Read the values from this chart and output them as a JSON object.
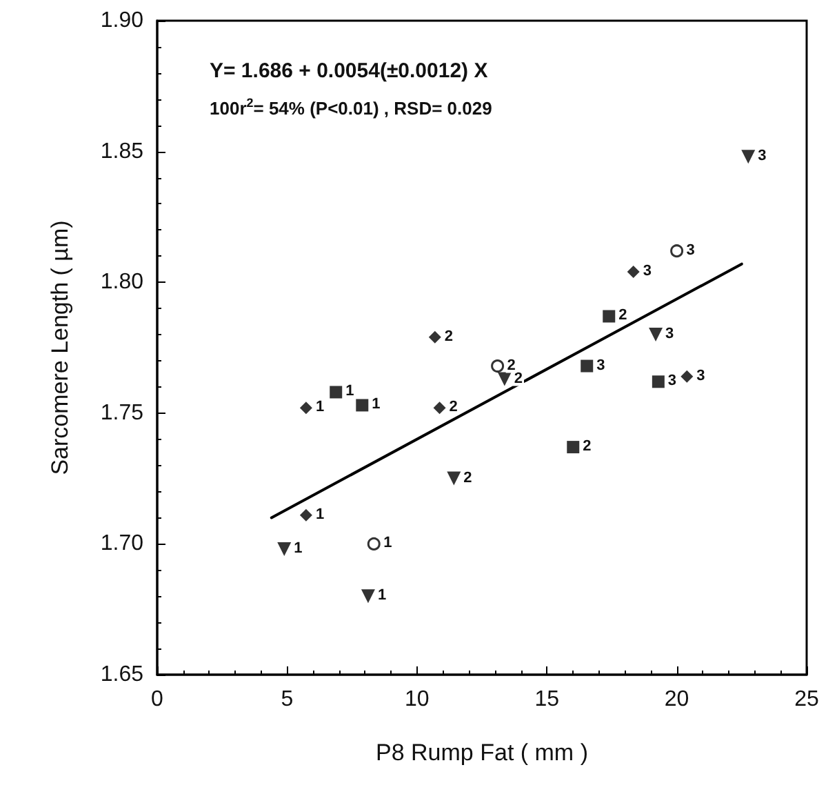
{
  "chart_data": {
    "type": "scatter",
    "xlabel": "P8 Rump Fat ( mm )",
    "ylabel": "Sarcomere Length ( µm)",
    "annotations": [
      "Y= 1.686 + 0.0054(±0.0012) X",
      "100r$^{2}$= 54% (P<0.01) , RSD= 0.029",
      {
        "text": "1",
        "x": 5.73,
        "y": 1.752
      },
      {
        "text": "1",
        "x": 5.73,
        "y": 1.711
      },
      {
        "text": "2",
        "x": 10.69,
        "y": 1.779
      },
      {
        "text": "2",
        "x": 10.87,
        "y": 1.752
      },
      {
        "text": "3",
        "x": 18.33,
        "y": 1.804
      },
      {
        "text": "3",
        "x": 20.39,
        "y": 1.764
      },
      {
        "text": "1",
        "x": 6.88,
        "y": 1.758
      },
      {
        "text": "1",
        "x": 7.89,
        "y": 1.753
      },
      {
        "text": "2",
        "x": 17.39,
        "y": 1.787
      },
      {
        "text": "2",
        "x": 16.01,
        "y": 1.737
      },
      {
        "text": "3",
        "x": 16.54,
        "y": 1.768
      },
      {
        "text": "3",
        "x": 19.29,
        "y": 1.762
      },
      {
        "text": "1",
        "x": 4.89,
        "y": 1.698
      },
      {
        "text": "1",
        "x": 8.12,
        "y": 1.68
      },
      {
        "text": "2",
        "x": 11.42,
        "y": 1.725
      },
      {
        "text": "2",
        "x": 13.37,
        "y": 1.763
      },
      {
        "text": "3",
        "x": 19.19,
        "y": 1.78
      },
      {
        "text": "3",
        "x": 22.75,
        "y": 1.848
      },
      {
        "text": "1",
        "x": 8.34,
        "y": 1.7
      },
      {
        "text": "2",
        "x": 13.1,
        "y": 1.768
      },
      {
        "text": "3",
        "x": 20.0,
        "y": 1.812
      }
    ],
    "xlim": [
      0,
      25
    ],
    "xticks": [
      0,
      5,
      10,
      15,
      20,
      25
    ],
    "ylim": [
      1.65,
      1.9
    ],
    "yticks": [
      {
        "value": 1.65,
        "label": "1.65"
      },
      {
        "value": 1.7,
        "label": "1.70"
      },
      {
        "value": 1.75,
        "label": "1.75"
      },
      {
        "value": 1.8,
        "label": "1.80"
      },
      {
        "value": 1.85,
        "label": "1.85"
      },
      {
        "value": 1.9,
        "label": "1.90"
      }
    ],
    "grid": false,
    "series": [
      {
        "marker": "diamond",
        "color": "#000000",
        "x": [
          5.73,
          5.73,
          10.69,
          10.87,
          18.33,
          20.39
        ],
        "values": [
          1.752,
          1.711,
          1.779,
          1.752,
          1.804,
          1.764
        ]
      },
      {
        "marker": "square",
        "color": "#000000",
        "x": [
          6.88,
          7.89,
          17.39,
          16.01,
          16.54,
          19.29
        ],
        "values": [
          1.758,
          1.753,
          1.787,
          1.737,
          1.768,
          1.762
        ]
      },
      {
        "marker": "triangle",
        "color": "#000000",
        "x": [
          4.89,
          8.12,
          11.42,
          13.37,
          19.19,
          22.75
        ],
        "values": [
          1.698,
          1.68,
          1.725,
          1.763,
          1.78,
          1.848
        ]
      },
      {
        "marker": "circle",
        "color": "#000000",
        "x": [
          8.34,
          13.1,
          20.0
        ],
        "values": [
          1.7,
          1.768,
          1.812
        ]
      },
      {
        "type": "line",
        "marker": "none",
        "color": "#000000",
        "x": [
          4.4,
          22.5
        ],
        "values": [
          1.71,
          1.807
        ]
      }
    ]
  }
}
